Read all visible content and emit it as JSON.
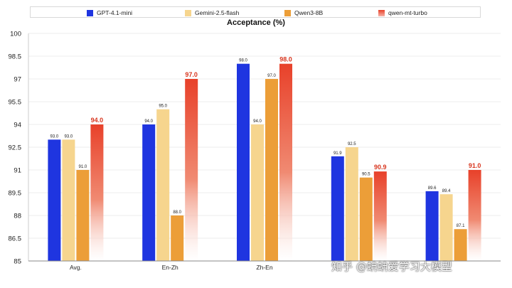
{
  "chart_data": {
    "type": "bar",
    "title": "Acceptance (%)",
    "categories": [
      "Avg.",
      "En-Zh",
      "Zh-En",
      "",
      ""
    ],
    "ylim": [
      85,
      100
    ],
    "yticks": [
      "85",
      "86.5",
      "88",
      "89.5",
      "91",
      "92.5",
      "94",
      "95.5",
      "97",
      "98.5",
      "100"
    ],
    "grid": true,
    "legend_position": "top",
    "series": [
      {
        "name": "GPT-4.1-mini",
        "color": "#1f35e0",
        "values": [
          93.0,
          94.0,
          98.0,
          91.9,
          89.6
        ],
        "labels": [
          "93.0",
          "94.0",
          "98.0",
          "91.9",
          "89.6"
        ]
      },
      {
        "name": "Gemini-2.5-flash",
        "color": "#f6d58e",
        "values": [
          93.0,
          95.0,
          94.0,
          92.5,
          89.4
        ],
        "labels": [
          "93.0",
          "95.0",
          "94.0",
          "92.5",
          "89.4"
        ]
      },
      {
        "name": "Qwen3-8B",
        "color": "#ec9e38",
        "values": [
          91.0,
          88.0,
          97.0,
          90.5,
          87.1
        ],
        "labels": [
          "91.0",
          "88.0",
          "97.0",
          "90.5",
          "87.1"
        ]
      },
      {
        "name": "qwen-mt-turbo",
        "color": "#e8412a",
        "values": [
          94.0,
          97.0,
          98.0,
          90.9,
          91.0
        ],
        "labels": [
          "94.0",
          "97.0",
          "98.0",
          "90.9",
          "91.0"
        ]
      }
    ]
  },
  "watermark": "知乎 @蚺蚺爱学习大模型"
}
